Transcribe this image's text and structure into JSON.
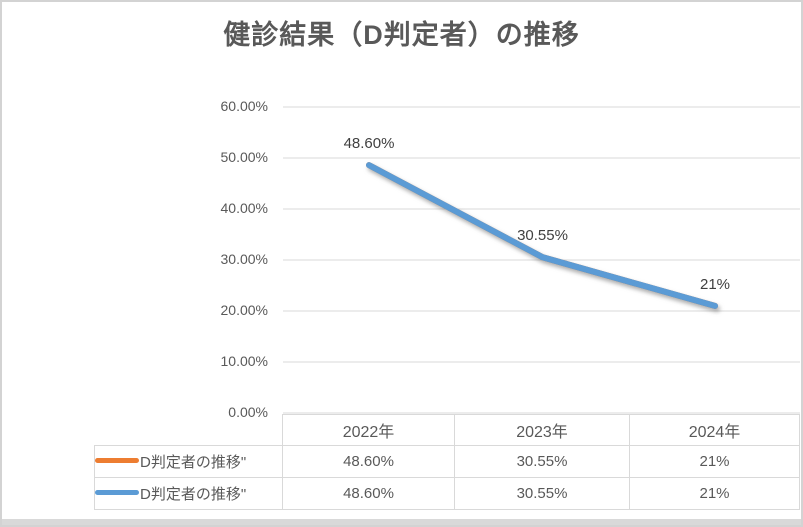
{
  "window": {
    "background": "#FFFFFF",
    "border_color": "#D3D3D3",
    "bottom_edge_color": "#D9D9D9"
  },
  "chart_data": {
    "type": "line",
    "title": "健診結果（D判定者）の推移",
    "title_color": "#595959",
    "categories": [
      "2022年",
      "2023年",
      "2024年"
    ],
    "series": [
      {
        "name": "D判定者の推移\"",
        "color": "#ED7D31",
        "values": [
          0.486,
          0.3055,
          0.21
        ],
        "display_values": [
          "48.60%",
          "30.55%",
          "21%"
        ]
      },
      {
        "name": "D判定者の推移\"",
        "color": "#5B9BD5",
        "values": [
          0.486,
          0.3055,
          0.21
        ],
        "display_values": [
          "48.60%",
          "30.55%",
          "21%"
        ]
      }
    ],
    "data_labels": [
      "48.60%",
      "30.55%",
      "21%"
    ],
    "y_axis": {
      "min": 0,
      "max": 0.6,
      "step": 0.1,
      "ticks": [
        "0.00%",
        "10.00%",
        "20.00%",
        "30.00%",
        "40.00%",
        "50.00%",
        "60.00%"
      ]
    },
    "grid": true,
    "gridline_color": "#D9D9D9",
    "axis_text_color": "#595959",
    "data_label_color": "#404040",
    "legend_position": "data-table-left",
    "line_width": 6
  }
}
